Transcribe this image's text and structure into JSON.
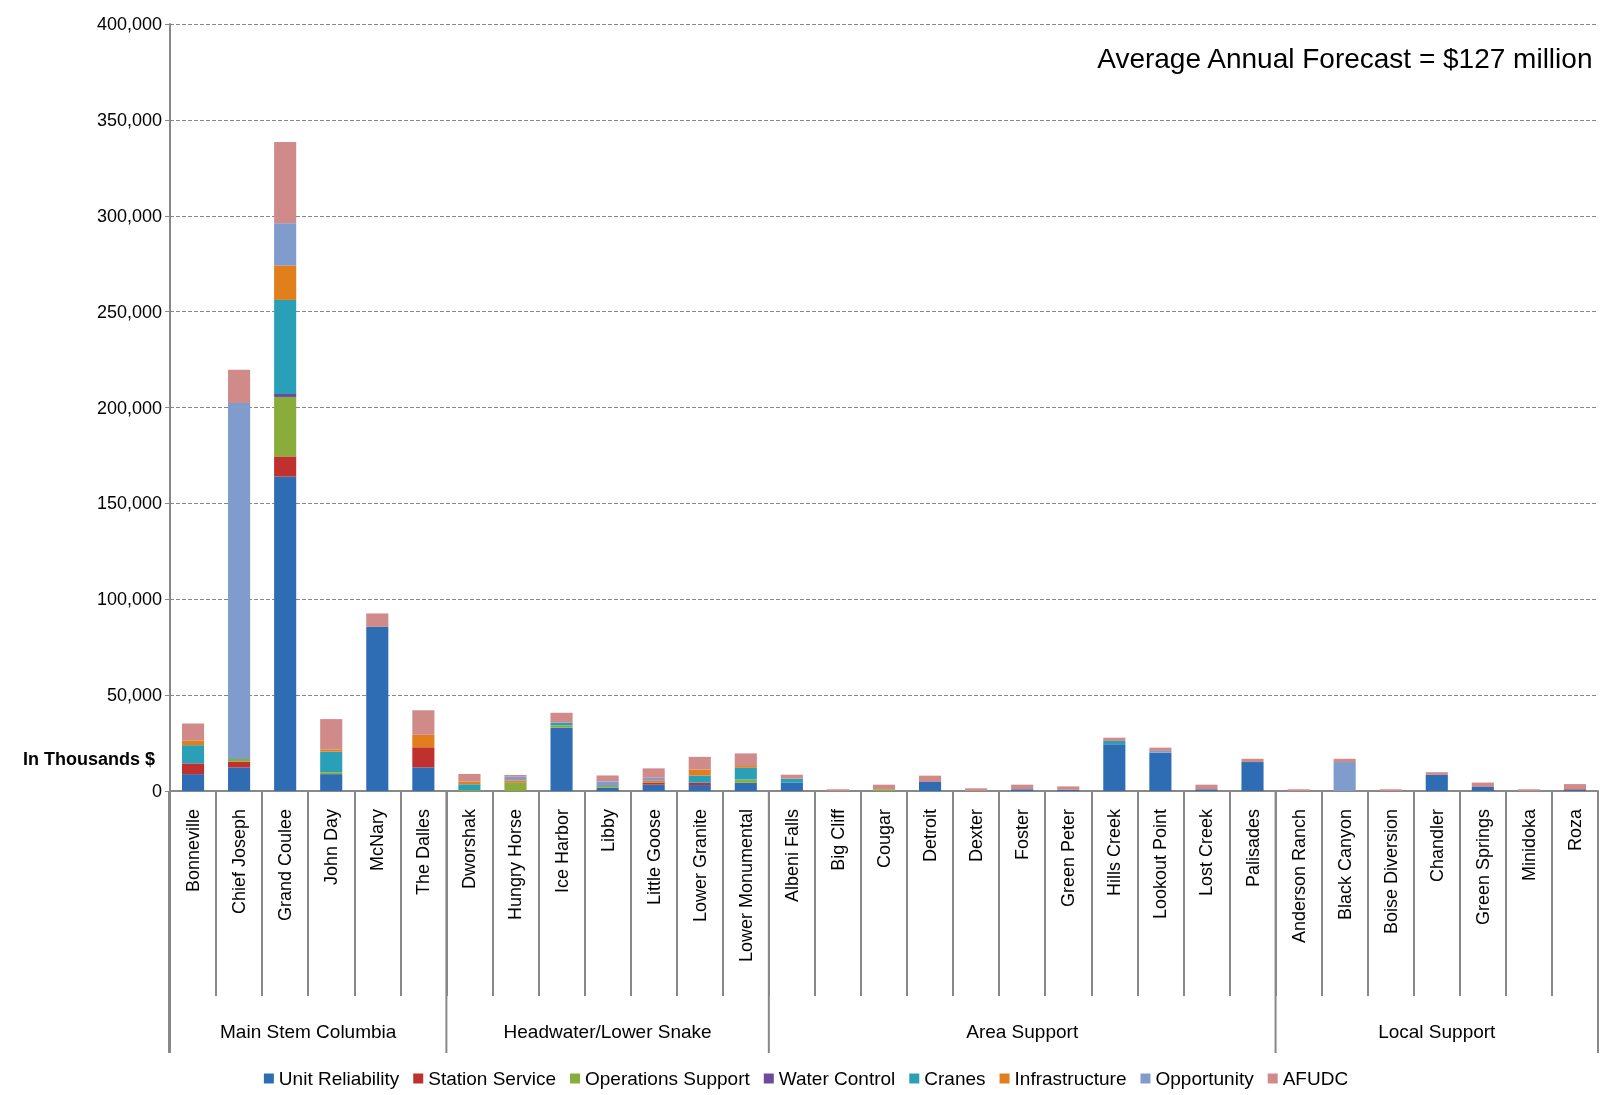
{
  "chart_data": {
    "type": "bar",
    "stacked": true,
    "ylabel": "In Thousands $",
    "categories": [
      "Bonneville",
      "Chief Joseph",
      "Grand Coulee",
      "John Day",
      "McNary",
      "The Dalles",
      "Dworshak",
      "Hungry Horse",
      "Ice Harbor",
      "Libby",
      "Little Goose",
      "Lower Granite",
      "Lower Monumental",
      "Albeni Falls",
      "Big Cliff",
      "Cougar",
      "Detroit",
      "Dexter",
      "Foster",
      "Green Peter",
      "Hills Creek",
      "Lookout Point",
      "Lost Creek",
      "Palisades",
      "Anderson Ranch",
      "Black Canyon",
      "Boise Diversion",
      "Chandler",
      "Green Springs",
      "Minidoka",
      "Roza"
    ],
    "series": [
      {
        "name": "Unit Reliability",
        "color": "#2e6db4",
        "values": [
          8800,
          12300,
          164000,
          8800,
          85600,
          12300,
          0,
          0,
          33000,
          1700,
          3300,
          3100,
          4300,
          4300,
          0,
          0,
          4700,
          0,
          900,
          700,
          24400,
          20000,
          900,
          15100,
          0,
          0,
          0,
          8400,
          2100,
          0,
          700
        ]
      },
      {
        "name": "Station Service",
        "color": "#c0302e",
        "values": [
          5600,
          3000,
          10500,
          0,
          0,
          10500,
          0,
          0,
          0,
          0,
          1000,
          1200,
          0,
          0,
          0,
          0,
          0,
          0,
          0,
          0,
          0,
          0,
          0,
          0,
          0,
          0,
          0,
          0,
          0,
          0,
          300
        ]
      },
      {
        "name": "Operations Support",
        "color": "#8aac3a",
        "values": [
          0,
          1400,
          31000,
          1000,
          0,
          0,
          500,
          4300,
          1200,
          900,
          0,
          0,
          1700,
          0,
          0,
          900,
          0,
          0,
          0,
          0,
          0,
          0,
          0,
          0,
          0,
          0,
          0,
          0,
          0,
          0,
          0
        ]
      },
      {
        "name": "Water Control",
        "color": "#6a4c9c",
        "values": [
          0,
          0,
          1600,
          0,
          0,
          0,
          0,
          0,
          0,
          0,
          0,
          0,
          0,
          0,
          0,
          0,
          0,
          0,
          0,
          0,
          0,
          0,
          0,
          0,
          0,
          0,
          0,
          0,
          0,
          0,
          0
        ]
      },
      {
        "name": "Cranes",
        "color": "#2aa0b8",
        "values": [
          9500,
          0,
          49000,
          10700,
          0,
          0,
          3000,
          0,
          1400,
          0,
          0,
          3800,
          6100,
          2100,
          0,
          0,
          0,
          0,
          0,
          0,
          1700,
          0,
          0,
          0,
          0,
          0,
          0,
          0,
          0,
          0,
          0
        ]
      },
      {
        "name": "Infrastructure",
        "color": "#e07f1c",
        "values": [
          2500,
          0,
          18000,
          1200,
          0,
          6500,
          1400,
          1200,
          0,
          0,
          1000,
          3100,
          900,
          0,
          0,
          0,
          0,
          0,
          0,
          0,
          0,
          0,
          0,
          0,
          0,
          0,
          0,
          0,
          0,
          0,
          0
        ]
      },
      {
        "name": "Opportunity",
        "color": "#7f9ccc",
        "values": [
          0,
          185600,
          22000,
          0,
          0,
          0,
          0,
          1900,
          0,
          2400,
          1600,
          0,
          0,
          0,
          0,
          0,
          0,
          0,
          0,
          0,
          0,
          900,
          0,
          0,
          0,
          15100,
          0,
          0,
          0,
          0,
          0
        ]
      },
      {
        "name": "AFUDC",
        "color": "#d08a8a",
        "values": [
          8800,
          17400,
          42300,
          15800,
          7000,
          12800,
          4000,
          1000,
          5200,
          3100,
          4900,
          6600,
          6600,
          2100,
          900,
          2400,
          3300,
          1400,
          2400,
          1700,
          1700,
          1700,
          2400,
          1700,
          900,
          1700,
          900,
          1400,
          2300,
          900,
          2600
        ]
      }
    ],
    "ylim": [
      0,
      400000
    ],
    "yticks": [
      {
        "value": 0,
        "label": "0"
      },
      {
        "value": 50000,
        "label": "50,000"
      },
      {
        "value": 100000,
        "label": "100,000"
      },
      {
        "value": 150000,
        "label": "150,000"
      },
      {
        "value": 200000,
        "label": "200,000"
      },
      {
        "value": 250000,
        "label": "250,000"
      },
      {
        "value": 300000,
        "label": "300,000"
      },
      {
        "value": 350000,
        "label": "350,000"
      },
      {
        "value": 400000,
        "label": "400,000"
      }
    ],
    "grid": "y",
    "legend": "bottom",
    "annotations": [
      "Average Annual Forecast = $127 million",
      "Main Stem Columbia",
      "Headwater/Lower Snake",
      "Area Support",
      "Local Support"
    ]
  }
}
